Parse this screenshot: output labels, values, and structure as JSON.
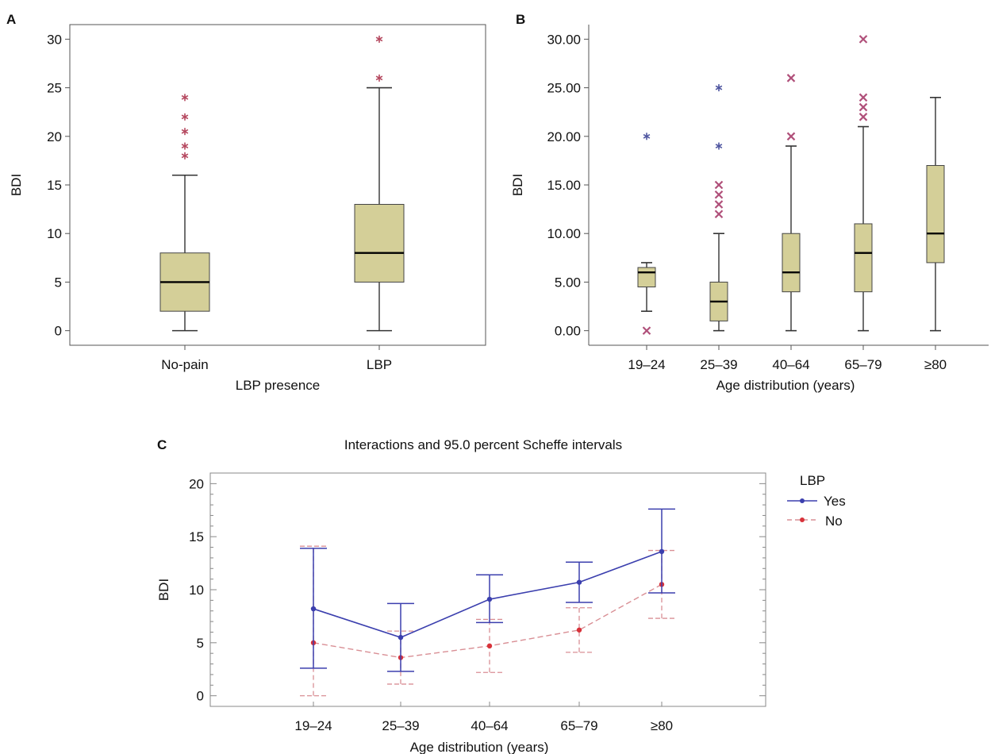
{
  "panel_labels": {
    "a": "A",
    "b": "B",
    "c": "C"
  },
  "colors": {
    "box_fill": "#d4cf98",
    "box_stroke": "#333333",
    "outlier_star": "#b5485f",
    "outlier_blue": "#4f56a0",
    "outlier_cross": "#b0507a",
    "yes_line": "#3b3fae",
    "no_line": "#d8323a",
    "no_dash": "#d98f95"
  },
  "chart_data": [
    {
      "panel": "A",
      "type": "box",
      "title": "",
      "xlabel": "LBP presence",
      "ylabel": "BDI",
      "ylim": [
        -1.5,
        31.5
      ],
      "y_ticks": [
        "0",
        "5",
        "10",
        "15",
        "20",
        "25",
        "30"
      ],
      "y_tick_values": [
        0,
        5,
        10,
        15,
        20,
        25,
        30
      ],
      "categories": [
        "No-pain",
        "LBP"
      ],
      "boxes": [
        {
          "category": "No-pain",
          "min": 0,
          "q1": 2,
          "median": 5,
          "q3": 8,
          "max": 16,
          "outliers": [
            18,
            19,
            20.5,
            22,
            24
          ],
          "outlier_marker": "star",
          "outlier_color": "#b5485f"
        },
        {
          "category": "LBP",
          "min": 0,
          "q1": 5,
          "median": 8,
          "q3": 13,
          "max": 25,
          "outliers": [
            26,
            30
          ],
          "outlier_marker": "star",
          "outlier_color": "#b5485f"
        }
      ]
    },
    {
      "panel": "B",
      "type": "box",
      "title": "",
      "xlabel": "Age distribution (years)",
      "ylabel": "BDI",
      "ylim": [
        -1.5,
        31.5
      ],
      "y_ticks": [
        "0.00",
        "5.00",
        "10.00",
        "15.00",
        "20.00",
        "25.00",
        "30.00"
      ],
      "y_tick_values": [
        0,
        5,
        10,
        15,
        20,
        25,
        30
      ],
      "categories": [
        "19–24",
        "25–39",
        "40–64",
        "65–79",
        "≥80"
      ],
      "boxes": [
        {
          "category": "19–24",
          "min": 2,
          "q1": 4.5,
          "median": 6,
          "q3": 6.5,
          "max": 7,
          "outliers": [
            {
              "v": 20,
              "m": "star",
              "c": "#4f56a0"
            },
            {
              "v": 0,
              "m": "cross",
              "c": "#b0507a"
            }
          ]
        },
        {
          "category": "25–39",
          "min": 0,
          "q1": 1,
          "median": 3,
          "q3": 5,
          "max": 10,
          "outliers": [
            {
              "v": 12,
              "m": "cross",
              "c": "#b0507a"
            },
            {
              "v": 13,
              "m": "cross",
              "c": "#b0507a"
            },
            {
              "v": 14,
              "m": "cross",
              "c": "#b0507a"
            },
            {
              "v": 15,
              "m": "cross",
              "c": "#b0507a"
            },
            {
              "v": 19,
              "m": "star",
              "c": "#4f56a0"
            },
            {
              "v": 25,
              "m": "star",
              "c": "#4f56a0"
            }
          ]
        },
        {
          "category": "40–64",
          "min": 0,
          "q1": 4,
          "median": 6,
          "q3": 10,
          "max": 19,
          "outliers": [
            {
              "v": 20,
              "m": "cross",
              "c": "#b0507a"
            },
            {
              "v": 26,
              "m": "cross",
              "c": "#b0507a"
            }
          ]
        },
        {
          "category": "65–79",
          "min": 0,
          "q1": 4,
          "median": 8,
          "q3": 11,
          "max": 21,
          "outliers": [
            {
              "v": 22,
              "m": "cross",
              "c": "#b0507a"
            },
            {
              "v": 23,
              "m": "cross",
              "c": "#b0507a"
            },
            {
              "v": 24,
              "m": "cross",
              "c": "#b0507a"
            },
            {
              "v": 30,
              "m": "cross",
              "c": "#b0507a"
            }
          ]
        },
        {
          "category": "≥80",
          "min": 0,
          "q1": 7,
          "median": 10,
          "q3": 17,
          "max": 24,
          "outliers": []
        }
      ]
    },
    {
      "panel": "C",
      "type": "line",
      "title": "Interactions and 95.0 percent Scheffe intervals",
      "xlabel": "Age distribution (years)",
      "ylabel": "BDI",
      "ylim": [
        -1,
        21
      ],
      "y_ticks": [
        "0",
        "5",
        "10",
        "15",
        "20"
      ],
      "y_tick_values": [
        0,
        5,
        10,
        15,
        20
      ],
      "categories": [
        "19–24",
        "25–39",
        "40–64",
        "65–79",
        "≥80"
      ],
      "legend_title": "LBP",
      "legend_position": "right",
      "series": [
        {
          "name": "Yes",
          "style": "solid",
          "color": "#3b3fae",
          "values": [
            8.2,
            5.5,
            9.1,
            10.7,
            13.6
          ],
          "lower": [
            2.6,
            2.3,
            6.9,
            8.8,
            9.7
          ],
          "upper": [
            13.9,
            8.7,
            11.4,
            12.6,
            17.6
          ]
        },
        {
          "name": "No",
          "style": "dashed",
          "color": "#d8323a",
          "values": [
            5.0,
            3.6,
            4.7,
            6.2,
            10.5
          ],
          "lower": [
            0.0,
            1.1,
            2.2,
            4.1,
            7.3
          ],
          "upper": [
            14.1,
            6.1,
            7.2,
            8.3,
            13.7
          ]
        }
      ]
    }
  ]
}
